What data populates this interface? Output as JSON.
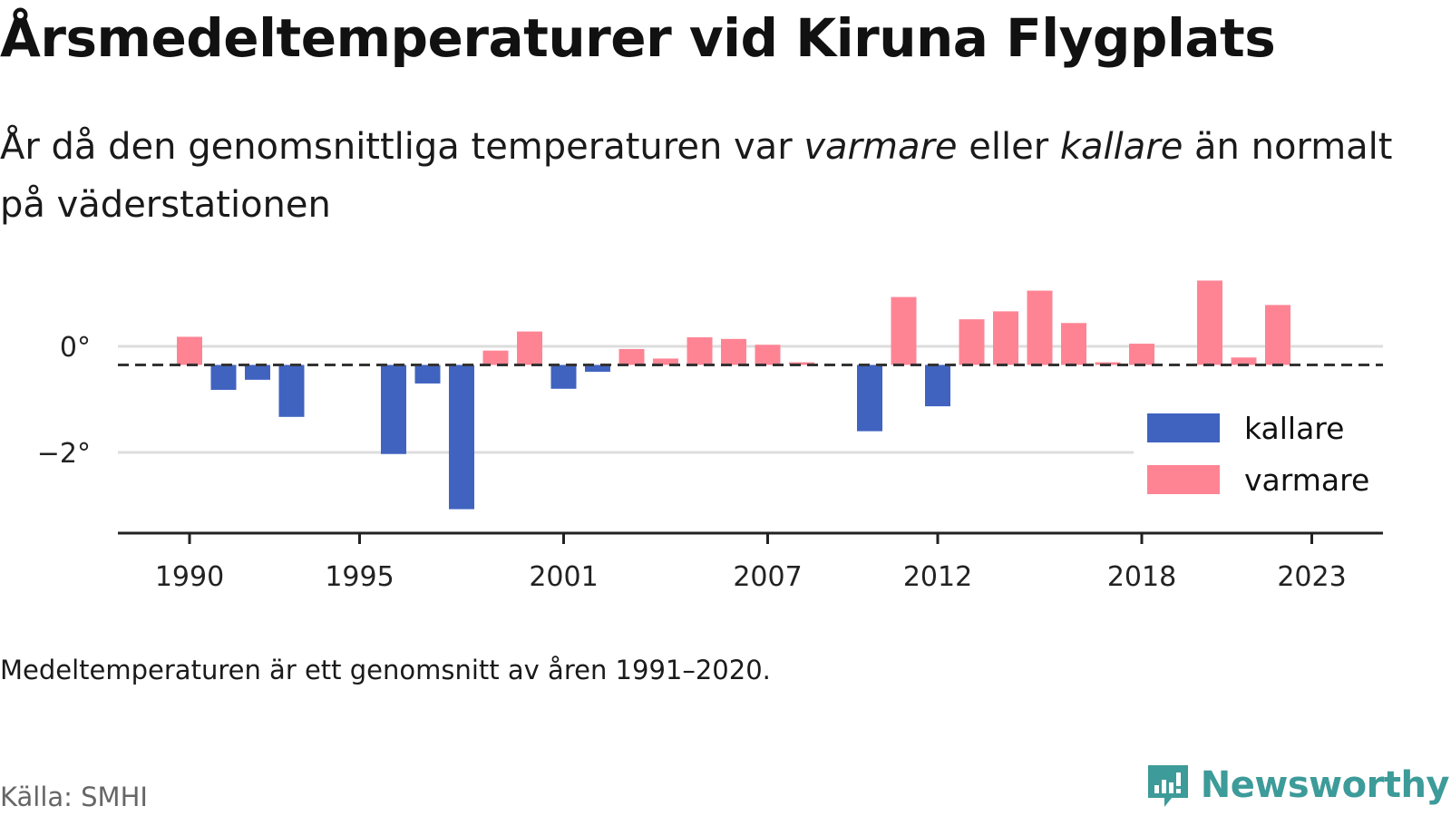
{
  "header": {
    "title": "Årsmedeltemperaturer vid Kiruna Flygplats",
    "subtitle_part1": "År då den genomsnittliga temperaturen var ",
    "subtitle_em1": "varmare",
    "subtitle_part2": " eller ",
    "subtitle_em2": "kallare",
    "subtitle_part3": " än normalt på väderstationen"
  },
  "footer": {
    "note": "Medeltemperaturen är ett genomsnitt av åren 1991–2020.",
    "source": "Källa: SMHI",
    "brand": "Newsworthy"
  },
  "colors": {
    "kallare": "#4063c0",
    "varmare": "#fe8494",
    "baseline": "#333333",
    "grid": "#dddddd",
    "brand": "#3d9b99"
  },
  "chart_data": {
    "type": "bar",
    "title": "Årsmedeltemperaturer vid Kiruna Flygplats",
    "baseline": -0.35,
    "y_tick_labels": [
      "0°",
      "−2°"
    ],
    "y_ticks": [
      0,
      -2
    ],
    "ylim": [
      -3.5,
      1.4
    ],
    "x_tick_labels": [
      "1990",
      "1995",
      "2001",
      "2007",
      "2012",
      "2018",
      "2023"
    ],
    "legend": {
      "position": "right",
      "entries": [
        "kallare",
        "varmare"
      ]
    },
    "years": [
      1990,
      1991,
      1992,
      1993,
      1994,
      1995,
      1996,
      1997,
      1998,
      1999,
      2000,
      2001,
      2002,
      2003,
      2004,
      2005,
      2006,
      2007,
      2008,
      2009,
      2010,
      2011,
      2012,
      2013,
      2014,
      2015,
      2016,
      2017,
      2018,
      2019,
      2020,
      2021,
      2022
    ],
    "values": [
      0.18,
      -0.82,
      -0.63,
      -1.33,
      null,
      null,
      -2.03,
      -0.7,
      -3.07,
      -0.08,
      0.28,
      -0.8,
      -0.48,
      -0.05,
      -0.23,
      0.17,
      0.14,
      0.03,
      -0.3,
      null,
      -1.6,
      0.93,
      -1.13,
      0.51,
      0.66,
      1.05,
      0.44,
      -0.3,
      0.05,
      null,
      1.24,
      -0.21,
      0.78
    ]
  }
}
